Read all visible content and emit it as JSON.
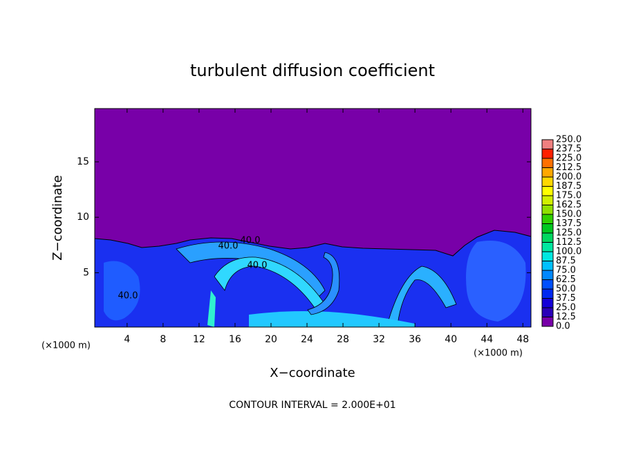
{
  "chart_data": {
    "type": "contour",
    "title": "turbulent diffusion coefficient",
    "x_label": "X−coordinate",
    "y_label": "Z−coordinate",
    "x_unit": "(×1000 m)",
    "x_unit_right": "(×1000 m)",
    "footer": "CONTOUR INTERVAL = 2.000E+01",
    "xlim": [
      0.4,
      48.9
    ],
    "ylim": [
      0.1,
      19.8
    ],
    "xticks": [
      4,
      8,
      12,
      16,
      20,
      24,
      28,
      32,
      36,
      40,
      44,
      48
    ],
    "yticks": [
      5,
      10,
      15
    ],
    "contour_labels": [
      "40.0",
      "40.0",
      "40.0",
      "40.0"
    ],
    "colorbar": {
      "lim": [
        0,
        250
      ],
      "ticks": [
        {
          "value": 0,
          "label": "0.0"
        },
        {
          "value": 12.5,
          "label": "12.5"
        },
        {
          "value": 25,
          "label": "25.0"
        },
        {
          "value": 37.5,
          "label": "37.5"
        },
        {
          "value": 50,
          "label": "50.0"
        },
        {
          "value": 62.5,
          "label": "62.5"
        },
        {
          "value": 75,
          "label": "75.0"
        },
        {
          "value": 87.5,
          "label": "87.5"
        },
        {
          "value": 100,
          "label": "100.0"
        },
        {
          "value": 112.5,
          "label": "112.5"
        },
        {
          "value": 125,
          "label": "125.0"
        },
        {
          "value": 137.5,
          "label": "137.5"
        },
        {
          "value": 150,
          "label": "150.0"
        },
        {
          "value": 162.5,
          "label": "162.5"
        },
        {
          "value": 175,
          "label": "175.0"
        },
        {
          "value": 187.5,
          "label": "187.5"
        },
        {
          "value": 200,
          "label": "200.0"
        },
        {
          "value": 212.5,
          "label": "212.5"
        },
        {
          "value": 225,
          "label": "225.0"
        },
        {
          "value": 237.5,
          "label": "237.5"
        },
        {
          "value": 250,
          "label": "250.0"
        }
      ],
      "colors": [
        "#7800a8",
        "#2a00b8",
        "#1400d8",
        "#0028f0",
        "#0050ff",
        "#0088ff",
        "#00c0ff",
        "#00e8e0",
        "#00e8a0",
        "#00d860",
        "#00c820",
        "#30d000",
        "#90e000",
        "#d0f000",
        "#ffff00",
        "#ffd800",
        "#ffa800",
        "#ff7000",
        "#ff2000",
        "#f08080"
      ]
    }
  }
}
